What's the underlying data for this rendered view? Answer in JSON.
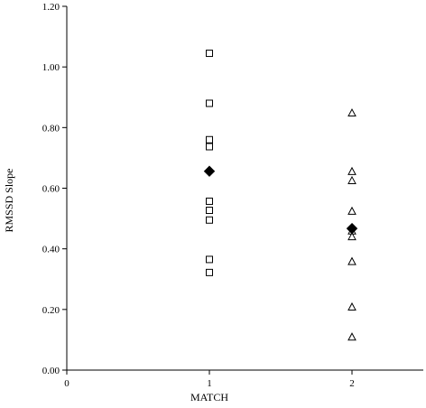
{
  "chart_data": {
    "type": "scatter",
    "title": "",
    "xlabel": "MATCH",
    "ylabel": "RMSSD Slope",
    "xlim": [
      0,
      2.5
    ],
    "ylim": [
      0,
      1.2
    ],
    "x_ticks": [
      0,
      1,
      2
    ],
    "x_tick_labels": [
      "0",
      "1",
      "2"
    ],
    "y_ticks": [
      0,
      0.2,
      0.4,
      0.6,
      0.8,
      1.0,
      1.2
    ],
    "y_tick_labels": [
      "0.00",
      "0.20",
      "0.40",
      "0.60",
      "0.80",
      "1.00",
      "1.20"
    ],
    "grid": false,
    "legend": "none",
    "series": [
      {
        "marker": "square-open",
        "color": "#000000",
        "points": [
          {
            "x": 1,
            "y": 1.045
          },
          {
            "x": 1,
            "y": 0.88
          },
          {
            "x": 1,
            "y": 0.76
          },
          {
            "x": 1,
            "y": 0.737
          },
          {
            "x": 1,
            "y": 0.557
          },
          {
            "x": 1,
            "y": 0.527
          },
          {
            "x": 1,
            "y": 0.495
          },
          {
            "x": 1,
            "y": 0.365
          },
          {
            "x": 1,
            "y": 0.322
          }
        ]
      },
      {
        "marker": "triangle-open",
        "color": "#000000",
        "points": [
          {
            "x": 2,
            "y": 0.847
          },
          {
            "x": 2,
            "y": 0.654
          },
          {
            "x": 2,
            "y": 0.624
          },
          {
            "x": 2,
            "y": 0.523
          },
          {
            "x": 2,
            "y": 0.458
          },
          {
            "x": 2,
            "y": 0.439
          },
          {
            "x": 2,
            "y": 0.357
          },
          {
            "x": 2,
            "y": 0.207
          },
          {
            "x": 2,
            "y": 0.108
          }
        ]
      },
      {
        "marker": "diamond-filled",
        "color": "#000000",
        "points": [
          {
            "x": 1,
            "y": 0.656
          },
          {
            "x": 2,
            "y": 0.467
          }
        ]
      }
    ]
  }
}
